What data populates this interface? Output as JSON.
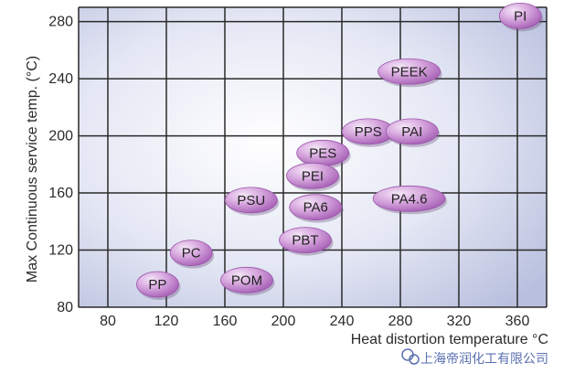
{
  "chart_data": {
    "type": "scatter",
    "title": "",
    "xlabel": "Heat distortion temperature °C",
    "ylabel": "Max Continuous service temp. (°C)",
    "xlim": [
      60,
      380
    ],
    "ylim": [
      80,
      290
    ],
    "x_ticks": [
      80,
      120,
      160,
      200,
      240,
      280,
      320,
      360
    ],
    "y_ticks": [
      80,
      120,
      160,
      200,
      240,
      280
    ],
    "grid": true,
    "colors": {
      "bubble_fill": "#b873c4",
      "bubble_highlight": "#f4e6f7",
      "gridline": "#2a2a2a",
      "plot_bg_center": "#ffffff",
      "plot_bg_edge": "#b9c0de"
    },
    "points": [
      {
        "label": "PI",
        "x": 362,
        "y": 284
      },
      {
        "label": "PEEK",
        "x": 286,
        "y": 245
      },
      {
        "label": "PPS",
        "x": 258,
        "y": 203
      },
      {
        "label": "PAI",
        "x": 288,
        "y": 203
      },
      {
        "label": "PES",
        "x": 227,
        "y": 188
      },
      {
        "label": "PEI",
        "x": 220,
        "y": 172
      },
      {
        "label": "PA4.6",
        "x": 286,
        "y": 156
      },
      {
        "label": "PSU",
        "x": 178,
        "y": 155
      },
      {
        "label": "PA6",
        "x": 222,
        "y": 150
      },
      {
        "label": "PBT",
        "x": 215,
        "y": 127
      },
      {
        "label": "PC",
        "x": 137,
        "y": 118
      },
      {
        "label": "POM",
        "x": 175,
        "y": 99
      },
      {
        "label": "PP",
        "x": 114,
        "y": 96
      }
    ]
  },
  "watermark": {
    "icon": "wechat-icon",
    "text": "上海帝润化工有限公司"
  }
}
